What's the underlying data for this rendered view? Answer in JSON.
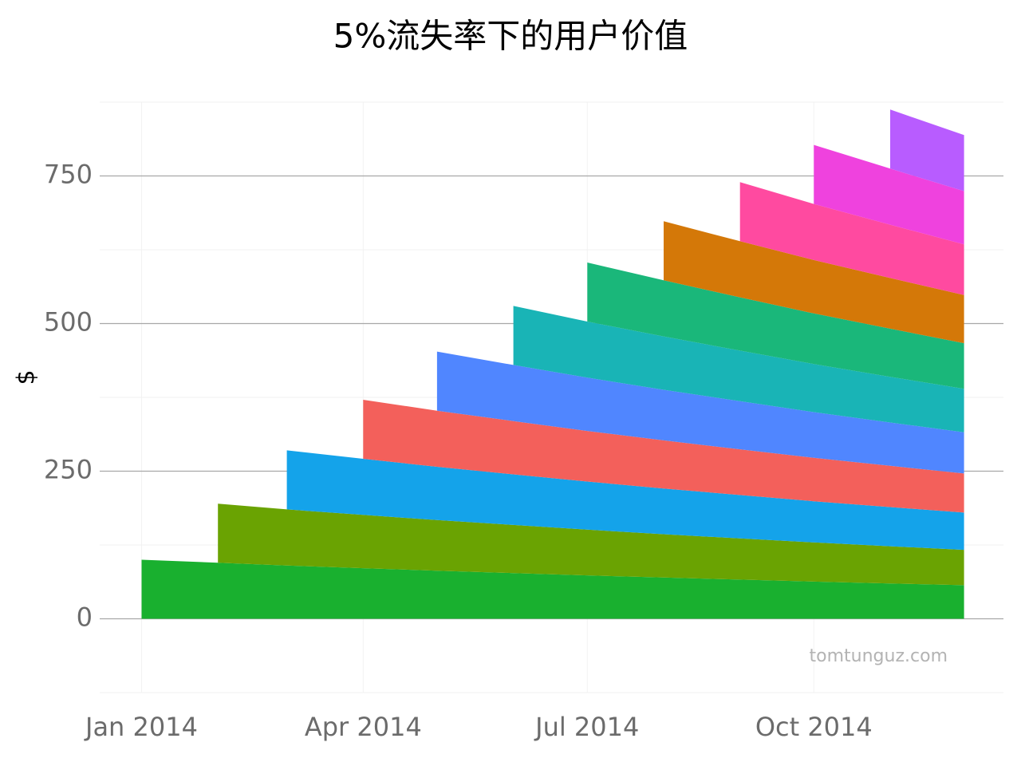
{
  "chart_data": {
    "type": "stacked_area",
    "title": "5%流失率下的用户价值",
    "y_label": "$",
    "annotation": "tomtunguz.com",
    "x": [
      "2014-01",
      "2014-02",
      "2014-03",
      "2014-04",
      "2014-05",
      "2014-06",
      "2014-07",
      "2014-08",
      "2014-09",
      "2014-10",
      "2014-11",
      "2014-12"
    ],
    "series": [
      {
        "name": "2014-01",
        "color": "#19b02f",
        "values": [
          100,
          95,
          90.3,
          85.7,
          81.5,
          77.4,
          73.5,
          69.8,
          66.3,
          63,
          59.9,
          56.9
        ]
      },
      {
        "name": "2014-02",
        "color": "#6aa302",
        "values": [
          null,
          100,
          95,
          90.3,
          85.7,
          81.5,
          77.4,
          73.5,
          69.8,
          66.3,
          63,
          59.9
        ]
      },
      {
        "name": "2014-03",
        "color": "#14a3ea",
        "values": [
          null,
          null,
          100,
          95,
          90.3,
          85.7,
          81.5,
          77.4,
          73.5,
          69.8,
          66.3,
          63
        ]
      },
      {
        "name": "2014-04",
        "color": "#f3605b",
        "values": [
          null,
          null,
          null,
          100,
          95,
          90.3,
          85.7,
          81.5,
          77.4,
          73.5,
          69.8,
          66.3
        ]
      },
      {
        "name": "2014-05",
        "color": "#5086ff",
        "values": [
          null,
          null,
          null,
          null,
          100,
          95,
          90.3,
          85.7,
          81.5,
          77.4,
          73.5,
          69.8
        ]
      },
      {
        "name": "2014-06",
        "color": "#19b4b6",
        "values": [
          null,
          null,
          null,
          null,
          null,
          100,
          95,
          90.3,
          85.7,
          81.5,
          77.4,
          73.5
        ]
      },
      {
        "name": "2014-07",
        "color": "#1ab77a",
        "values": [
          null,
          null,
          null,
          null,
          null,
          null,
          100,
          95,
          90.3,
          85.7,
          81.5,
          77.4
        ]
      },
      {
        "name": "2014-08",
        "color": "#d47808",
        "values": [
          null,
          null,
          null,
          null,
          null,
          null,
          null,
          100,
          95,
          90.3,
          85.7,
          81.5
        ]
      },
      {
        "name": "2014-09",
        "color": "#ff4aa0",
        "values": [
          null,
          null,
          null,
          null,
          null,
          null,
          null,
          null,
          100,
          95,
          90.3,
          85.7
        ]
      },
      {
        "name": "2014-10",
        "color": "#ef42de",
        "values": [
          null,
          null,
          null,
          null,
          null,
          null,
          null,
          null,
          null,
          100,
          95,
          90.3
        ]
      },
      {
        "name": "2014-11",
        "color": "#b85cff",
        "values": [
          null,
          null,
          null,
          null,
          null,
          null,
          null,
          null,
          null,
          null,
          100,
          95
        ]
      }
    ],
    "xlim": [
      "2013-12-15",
      "2014-12-17"
    ],
    "xticks": [
      {
        "value": "2014-01",
        "label": "Jan 2014"
      },
      {
        "value": "2014-04",
        "label": "Apr 2014"
      },
      {
        "value": "2014-07",
        "label": "Jul 2014"
      },
      {
        "value": "2014-10",
        "label": "Oct 2014"
      }
    ],
    "ylim": [
      -125,
      875
    ],
    "yticks": [
      0,
      250,
      500,
      750
    ],
    "minor_yticks": [
      -125,
      125,
      375,
      625,
      875
    ],
    "grid": true
  }
}
